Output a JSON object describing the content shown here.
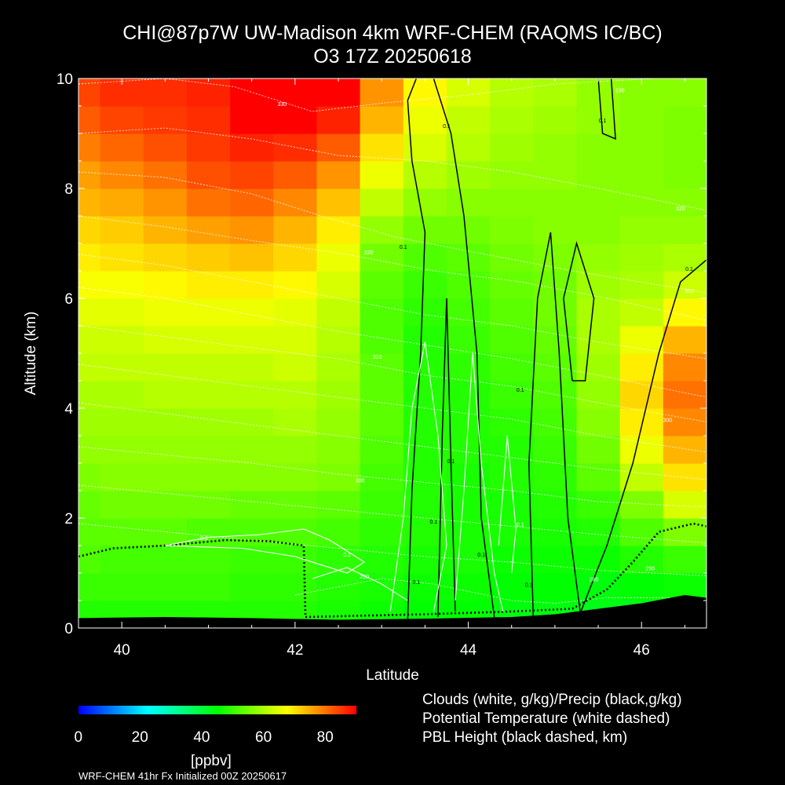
{
  "title": {
    "line1": "CHI@87p7W UW-Madison 4km WRF-CHEM (RAQMS IC/BC)",
    "line2": "O3 17Z 20250618"
  },
  "colors": {
    "background": "#000000",
    "foreground": "#ffffff",
    "colormap": [
      "#0000ff",
      "#00ffff",
      "#00ff00",
      "#ffff00",
      "#ff0000"
    ]
  },
  "chart_data": {
    "type": "heatmap",
    "variable": "O3",
    "xlabel": "Latitude",
    "ylabel": "Altitude (km)",
    "xlim": [
      39.5,
      46.75
    ],
    "ylim": [
      0,
      10
    ],
    "xticks": [
      40,
      42,
      44,
      46
    ],
    "yticks": [
      0,
      2,
      4,
      6,
      8,
      10
    ],
    "x_grid_lat": [
      39.5,
      40.0,
      40.5,
      41.0,
      41.5,
      42.0,
      42.5,
      43.0,
      43.5,
      44.0,
      44.5,
      45.0,
      45.5,
      46.0,
      46.5
    ],
    "y_grid_km": [
      0.25,
      0.75,
      1.25,
      1.75,
      2.25,
      2.75,
      3.25,
      3.75,
      4.25,
      4.75,
      5.25,
      5.75,
      6.25,
      6.75,
      7.25,
      7.75,
      8.25,
      8.75,
      9.25,
      9.75
    ],
    "o3_ppbv": [
      [
        48,
        48,
        48,
        48,
        48,
        48,
        47,
        46,
        45,
        45,
        44,
        44,
        43,
        43,
        44
      ],
      [
        50,
        50,
        50,
        50,
        49,
        49,
        48,
        47,
        46,
        46,
        45,
        45,
        44,
        45,
        46
      ],
      [
        52,
        51,
        51,
        51,
        50,
        50,
        49,
        48,
        47,
        47,
        46,
        46,
        46,
        48,
        50
      ],
      [
        53,
        53,
        53,
        52,
        52,
        52,
        51,
        49,
        48,
        47,
        47,
        47,
        48,
        52,
        56
      ],
      [
        54,
        55,
        55,
        55,
        54,
        54,
        53,
        50,
        48,
        47,
        47,
        48,
        50,
        56,
        64
      ],
      [
        56,
        57,
        57,
        57,
        57,
        57,
        56,
        51,
        48,
        47,
        48,
        49,
        53,
        62,
        70
      ],
      [
        58,
        58,
        58,
        58,
        58,
        58,
        57,
        52,
        48,
        48,
        48,
        50,
        55,
        66,
        74
      ],
      [
        59,
        59,
        59,
        59,
        59,
        60,
        58,
        53,
        48,
        48,
        49,
        51,
        57,
        69,
        78
      ],
      [
        60,
        60,
        61,
        61,
        61,
        61,
        59,
        53,
        48,
        48,
        50,
        52,
        58,
        71,
        80
      ],
      [
        62,
        62,
        62,
        62,
        62,
        63,
        60,
        53,
        48,
        49,
        51,
        53,
        59,
        69,
        78
      ],
      [
        63,
        63,
        64,
        64,
        64,
        64,
        61,
        52,
        48,
        50,
        52,
        54,
        60,
        66,
        74
      ],
      [
        65,
        65,
        66,
        66,
        66,
        65,
        62,
        52,
        49,
        51,
        53,
        55,
        60,
        62,
        68
      ],
      [
        67,
        67,
        68,
        69,
        69,
        68,
        64,
        53,
        50,
        52,
        54,
        55,
        59,
        60,
        63
      ],
      [
        69,
        70,
        71,
        72,
        73,
        71,
        66,
        55,
        52,
        53,
        55,
        56,
        58,
        59,
        60
      ],
      [
        71,
        72,
        74,
        76,
        77,
        74,
        69,
        58,
        55,
        55,
        56,
        57,
        57,
        58,
        58
      ],
      [
        74,
        75,
        77,
        80,
        81,
        78,
        73,
        62,
        58,
        57,
        57,
        57,
        57,
        57,
        57
      ],
      [
        76,
        78,
        80,
        83,
        84,
        82,
        77,
        66,
        61,
        59,
        58,
        58,
        57,
        57,
        56
      ],
      [
        79,
        81,
        83,
        85,
        87,
        86,
        82,
        70,
        64,
        61,
        59,
        58,
        57,
        57,
        56
      ],
      [
        82,
        84,
        85,
        86,
        90,
        90,
        87,
        74,
        66,
        62,
        60,
        59,
        58,
        57,
        56
      ],
      [
        84,
        86,
        86,
        87,
        90,
        90,
        90,
        77,
        68,
        64,
        61,
        60,
        58,
        57,
        57
      ]
    ],
    "contour_labels": [
      {
        "text": "330",
        "lat": 41.85,
        "alt": 9.5,
        "color": "white"
      },
      {
        "text": "320",
        "lat": 42.85,
        "alt": 6.8,
        "color": "white"
      },
      {
        "text": "310",
        "lat": 42.95,
        "alt": 4.9,
        "color": "white"
      },
      {
        "text": "300",
        "lat": 42.75,
        "alt": 2.65,
        "color": "white"
      },
      {
        "text": "290",
        "lat": 42.8,
        "alt": 0.9,
        "color": "white"
      },
      {
        "text": "330",
        "lat": 45.75,
        "alt": 9.75,
        "color": "white"
      },
      {
        "text": "320",
        "lat": 46.45,
        "alt": 7.6,
        "color": "white"
      },
      {
        "text": "310",
        "lat": 46.55,
        "alt": 6.1,
        "color": "white"
      },
      {
        "text": "300",
        "lat": 46.3,
        "alt": 3.75,
        "color": "white"
      },
      {
        "text": "290",
        "lat": 46.1,
        "alt": 1.05,
        "color": "white"
      },
      {
        "text": "280",
        "lat": 45.45,
        "alt": 0.85,
        "color": "white"
      },
      {
        "text": "0.1",
        "lat": 43.75,
        "alt": 9.1,
        "color": "black"
      },
      {
        "text": "0.1",
        "lat": 43.25,
        "alt": 6.9,
        "color": "black"
      },
      {
        "text": "0.1",
        "lat": 45.55,
        "alt": 9.2,
        "color": "black"
      },
      {
        "text": "0.1",
        "lat": 46.55,
        "alt": 6.5,
        "color": "black"
      },
      {
        "text": "0.1",
        "lat": 43.8,
        "alt": 3.0,
        "color": "black"
      },
      {
        "text": "0.1",
        "lat": 43.6,
        "alt": 1.9,
        "color": "black"
      },
      {
        "text": "0.1",
        "lat": 43.4,
        "alt": 0.8,
        "color": "black"
      },
      {
        "text": "0.1",
        "lat": 44.7,
        "alt": 0.75,
        "color": "black"
      },
      {
        "text": "0.1",
        "lat": 44.15,
        "alt": 1.3,
        "color": "black"
      },
      {
        "text": "0.1",
        "lat": 44.6,
        "alt": 4.3,
        "color": "black"
      },
      {
        "text": "0.1",
        "lat": 42.6,
        "alt": 1.3,
        "color": "white"
      },
      {
        "text": "0.1",
        "lat": 44.6,
        "alt": 1.85,
        "color": "white"
      },
      {
        "text": "0.1",
        "lat": 40.95,
        "alt": 1.6,
        "color": "white"
      }
    ]
  },
  "colorbar": {
    "min": 0,
    "max": 90,
    "tick_labels": [
      "0",
      "20",
      "40",
      "60",
      "80"
    ],
    "tick_values": [
      0,
      20,
      40,
      60,
      80
    ],
    "units": "[ppbv]"
  },
  "legend": {
    "line1": "Clouds (white, g/kg)/Precip (black,g/kg)",
    "line2": "Potential Temperature (white dashed)",
    "line3": "PBL Height (black dashed, km)"
  },
  "footer": "WRF-CHEM 41hr  Fx Initialized 00Z 20250617"
}
